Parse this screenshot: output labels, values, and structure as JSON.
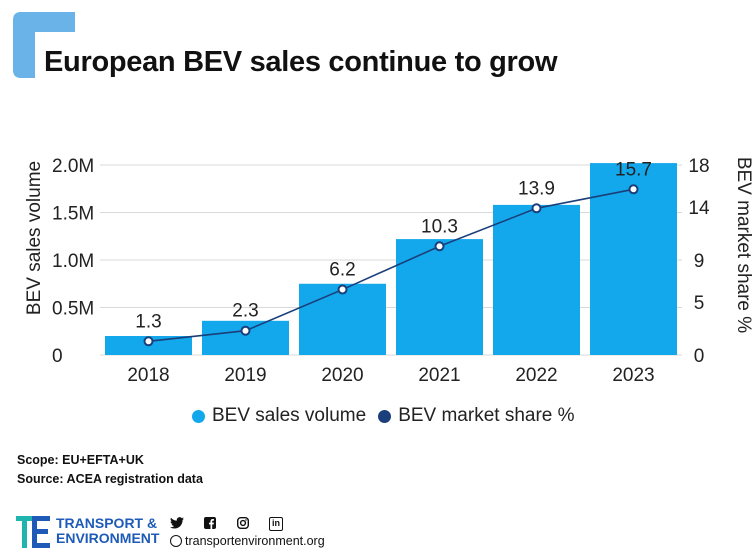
{
  "title": "European BEV sales continue to grow",
  "colors": {
    "accent": "#6ab3e8",
    "bar": "#13a8ec",
    "line": "#1a3f7a",
    "brand": "#1e5bb8"
  },
  "chart_data": {
    "type": "bar",
    "categories": [
      "2018",
      "2019",
      "2020",
      "2021",
      "2022",
      "2023"
    ],
    "series": [
      {
        "name": "BEV sales volume",
        "type": "bar",
        "axis": "left",
        "values": [
          200000,
          360000,
          750000,
          1220000,
          1580000,
          2020000
        ]
      },
      {
        "name": "BEV market share %",
        "type": "line",
        "axis": "right",
        "values": [
          1.3,
          2.3,
          6.2,
          10.3,
          13.9,
          15.7
        ],
        "data_labels": [
          "1.3",
          "2.3",
          "6.2",
          "10.3",
          "13.9",
          "15.7"
        ]
      }
    ],
    "ylabel": "BEV sales volume",
    "y2label": "BEV market share %",
    "ylim": [
      0,
      2000000
    ],
    "y2lim": [
      0,
      18
    ],
    "yticks": [
      0,
      500000,
      1000000,
      1500000,
      2000000
    ],
    "ytick_labels": [
      "0",
      "0.5M",
      "1.0M",
      "1.5M",
      "2.0M"
    ],
    "y2ticks": [
      0,
      5,
      9,
      14,
      18
    ],
    "y2tick_labels": [
      "0",
      "5",
      "9",
      "14",
      "18"
    ],
    "grid": true,
    "legend": "bottom"
  },
  "notes": {
    "scope": "Scope: EU+EFTA+UK",
    "source": "Source: ACEA registration data"
  },
  "footer": {
    "brand_line1": "TRANSPORT &",
    "brand_line2": "ENVIRONMENT",
    "website": "transportenvironment.org",
    "social_icons": [
      "twitter-icon",
      "facebook-icon",
      "instagram-icon",
      "linkedin-icon"
    ],
    "linkedin_text": "in"
  }
}
